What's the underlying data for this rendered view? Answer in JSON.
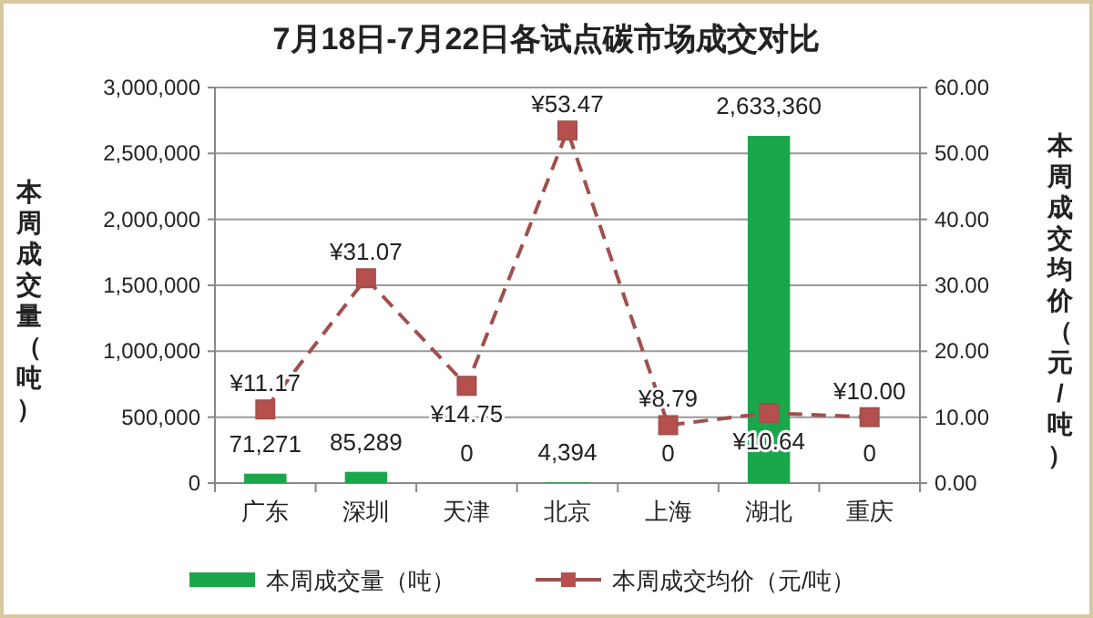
{
  "chart_data": {
    "type": "bar",
    "title": "7月18日-7月22日各试点碳市场成交对比",
    "categories": [
      "广东",
      "深圳",
      "天津",
      "北京",
      "上海",
      "湖北",
      "重庆"
    ],
    "series": [
      {
        "name": "本周成交量（吨）",
        "color": "#1aa64a",
        "values": [
          71271,
          85289,
          0,
          4394,
          0,
          2633360,
          0
        ],
        "value_labels": [
          "71,271",
          "85,289",
          "0",
          "4,394",
          "0",
          "2,633,360",
          "0"
        ]
      },
      {
        "name": "本周成交均价（元/吨）",
        "type": "line",
        "axis": "y2",
        "color": "#a0504e",
        "marker": "square",
        "line_style": "dashed",
        "values": [
          11.17,
          31.07,
          14.75,
          53.47,
          8.79,
          10.64,
          10.0
        ],
        "value_labels": [
          "¥11.17",
          "¥31.07",
          "¥14.75",
          "¥53.47",
          "¥8.79",
          "¥10.64",
          "¥10.00"
        ]
      }
    ],
    "ylabel": "本周成交量（吨）",
    "y2label": "本周成交均价（元/吨）",
    "ylim": [
      0,
      3000000
    ],
    "yticks": [
      0,
      {
        "value": 500000,
        "label": "500,000"
      },
      {
        "value": 1000000,
        "label": "1,000,000"
      },
      {
        "value": 1500000,
        "label": "1,500,000"
      },
      {
        "value": 2000000,
        "label": "2,000,000"
      },
      {
        "value": 2500000,
        "label": "2,500,000"
      },
      {
        "value": 3000000,
        "label": "3,000,000"
      }
    ],
    "y2lim": [
      0,
      60
    ],
    "y2ticks": [
      {
        "value": 0,
        "label": "0.00"
      },
      {
        "value": 10,
        "label": "10.00"
      },
      {
        "value": 20,
        "label": "20.00"
      },
      {
        "value": 30,
        "label": "30.00"
      },
      {
        "value": 40,
        "label": "40.00"
      },
      {
        "value": 50,
        "label": "50.00"
      },
      {
        "value": 60,
        "label": "60.00"
      }
    ],
    "grid": "y",
    "legend": "bottom"
  }
}
